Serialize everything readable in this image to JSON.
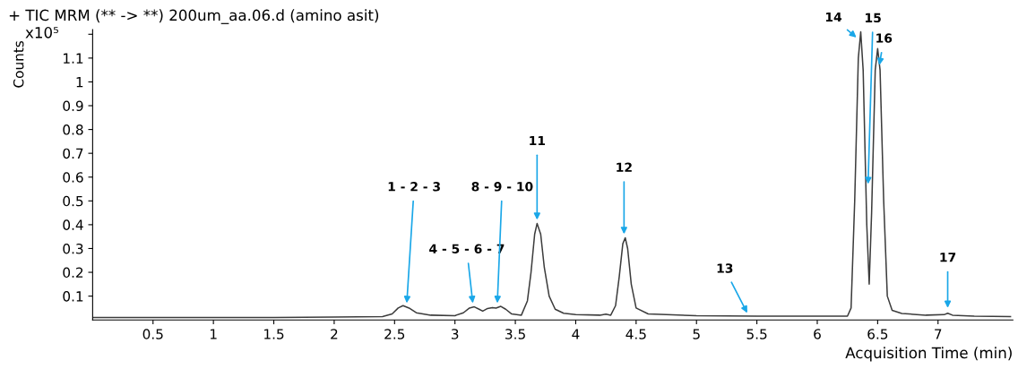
{
  "chart_data": {
    "type": "line",
    "title": "+ TIC MRM (** -> **) 200um_aa.06.d (amino asit)",
    "xlabel": "Acquisition Time (min)",
    "ylabel": "Counts",
    "x": [
      0.0,
      0.5,
      1.0,
      1.5,
      2.0,
      2.4,
      2.48,
      2.53,
      2.57,
      2.62,
      2.68,
      2.8,
      3.0,
      3.07,
      3.12,
      3.16,
      3.2,
      3.23,
      3.27,
      3.31,
      3.34,
      3.38,
      3.42,
      3.47,
      3.55,
      3.6,
      3.63,
      3.66,
      3.68,
      3.71,
      3.74,
      3.78,
      3.83,
      3.9,
      4.0,
      4.2,
      4.25,
      4.29,
      4.33,
      4.36,
      4.39,
      4.41,
      4.43,
      4.46,
      4.5,
      4.6,
      5.0,
      5.5,
      6.0,
      6.25,
      6.28,
      6.31,
      6.34,
      6.36,
      6.38,
      6.41,
      6.43,
      6.45,
      6.48,
      6.5,
      6.52,
      6.55,
      6.58,
      6.62,
      6.7,
      6.9,
      7.05,
      7.08,
      7.12,
      7.3,
      7.6
    ],
    "series": [
      {
        "color": "#3c3c3c",
        "values": [
          0.01,
          0.01,
          0.01,
          0.01,
          0.012,
          0.014,
          0.025,
          0.05,
          0.06,
          0.05,
          0.03,
          0.02,
          0.018,
          0.03,
          0.05,
          0.055,
          0.045,
          0.037,
          0.048,
          0.052,
          0.05,
          0.057,
          0.045,
          0.025,
          0.02,
          0.08,
          0.2,
          0.36,
          0.405,
          0.36,
          0.22,
          0.1,
          0.045,
          0.028,
          0.022,
          0.02,
          0.024,
          0.02,
          0.06,
          0.18,
          0.32,
          0.345,
          0.3,
          0.15,
          0.05,
          0.025,
          0.018,
          0.016,
          0.016,
          0.016,
          0.05,
          0.5,
          1.1,
          1.21,
          1.05,
          0.4,
          0.15,
          0.45,
          1.05,
          1.14,
          1.05,
          0.5,
          0.1,
          0.04,
          0.027,
          0.02,
          0.022,
          0.028,
          0.02,
          0.016,
          0.014
        ]
      }
    ],
    "xlim": [
      0,
      7.62
    ],
    "ylim": [
      0,
      1.22
    ],
    "xticks": [
      0.5,
      1,
      1.5,
      2,
      2.5,
      3,
      3.5,
      4,
      4.5,
      5,
      5.5,
      6,
      6.5,
      7
    ],
    "yticks": [
      0.1,
      0.2,
      0.3,
      0.4,
      0.5,
      0.6,
      0.7,
      0.8,
      0.9,
      1,
      1.1,
      {
        "value": 1.2,
        "label": null
      }
    ],
    "grid": false,
    "legend": false,
    "marker": "none",
    "line_style": "solid",
    "annotations": [
      "x10⁵",
      {
        "text": "1 - 2 - 3",
        "x": 2.6,
        "y": 0.06
      },
      {
        "text": "4 - 5 - 6 - 7",
        "x": 3.15,
        "y": 0.06
      },
      {
        "text": "8 - 9 - 10",
        "x": 3.35,
        "y": 0.06
      },
      {
        "text": "11",
        "x": 3.68,
        "y": 0.41
      },
      {
        "text": "12",
        "x": 4.4,
        "y": 0.35
      },
      {
        "text": "13",
        "x": 5.43,
        "y": 0.02
      },
      {
        "text": "14",
        "x": 6.34,
        "y": 1.18
      },
      {
        "text": "15",
        "x": 6.42,
        "y": 0.56
      },
      {
        "text": "16",
        "x": 6.51,
        "y": 1.06
      },
      {
        "text": "17",
        "x": 7.08,
        "y": 0.04
      }
    ]
  }
}
